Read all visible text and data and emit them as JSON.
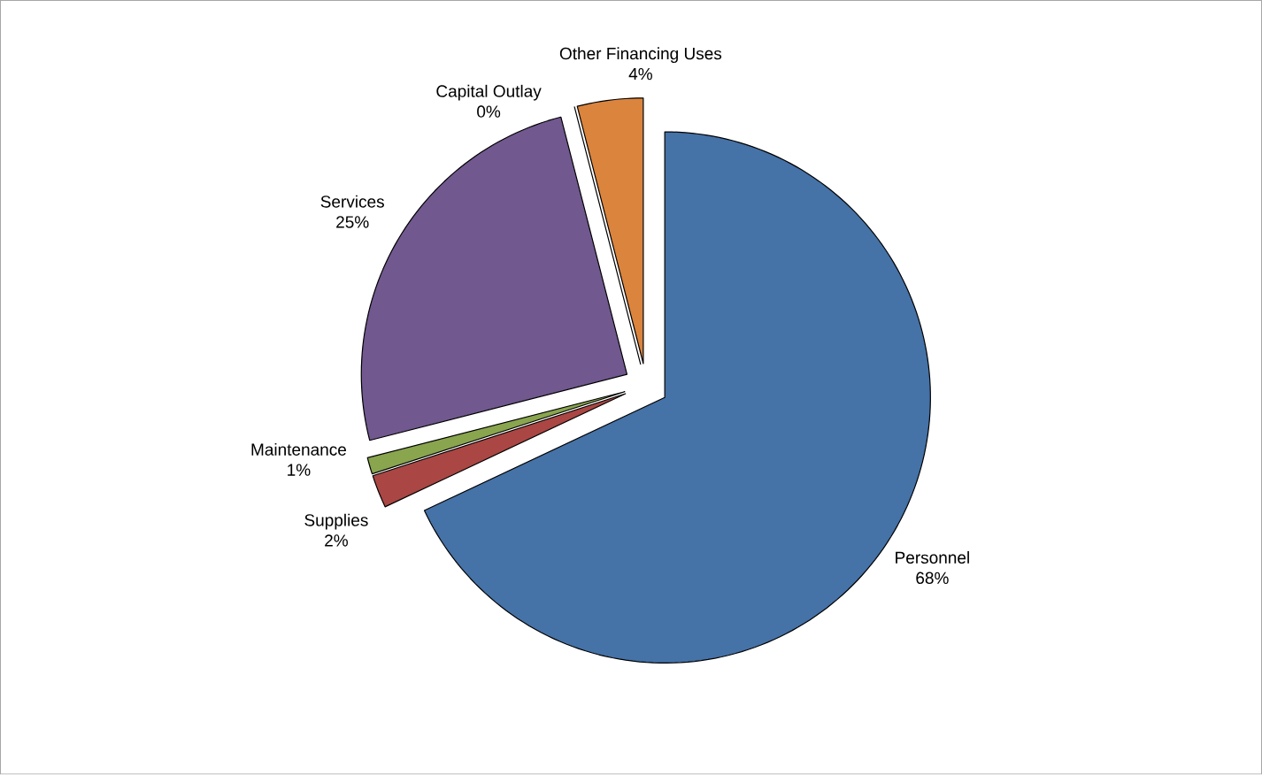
{
  "chart_data": {
    "type": "pie",
    "categories": [
      "Personnel",
      "Supplies",
      "Maintenance",
      "Services",
      "Capital Outlay",
      "Other Financing Uses"
    ],
    "values": [
      68,
      2,
      1,
      25,
      0,
      4
    ],
    "value_labels": [
      "68%",
      "2%",
      "1%",
      "25%",
      "0%",
      "4%"
    ],
    "colors": [
      "#4572a7",
      "#aa4643",
      "#89a54e",
      "#71588f",
      "#4198af",
      "#db843d"
    ]
  }
}
